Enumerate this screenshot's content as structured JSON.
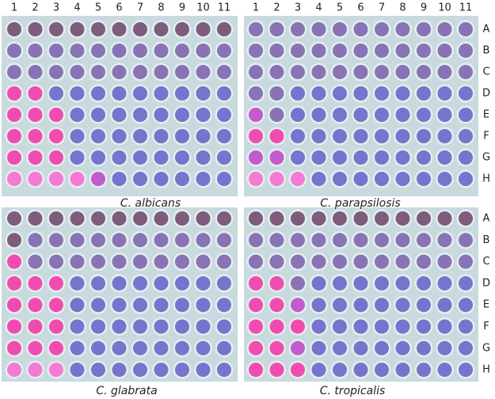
{
  "left_column_labels": [
    "1",
    "2",
    "3",
    "4",
    "5",
    "6",
    "7",
    "8",
    "9",
    "10",
    "11"
  ],
  "right_column_labels": [
    "1",
    "2",
    "3",
    "4",
    "5",
    "6",
    "7",
    "8",
    "9",
    "10",
    "11"
  ],
  "top_row_labels": [
    "A",
    "B",
    "C",
    "D",
    "E",
    "F",
    "G",
    "H"
  ],
  "bottom_row_labels": [
    "A",
    "B",
    "C",
    "D",
    "E",
    "F",
    "G",
    "H"
  ],
  "captions": [
    "C. albicans",
    "C. parapsilosis",
    "C. glabrata",
    "C. tropicalis"
  ]
}
